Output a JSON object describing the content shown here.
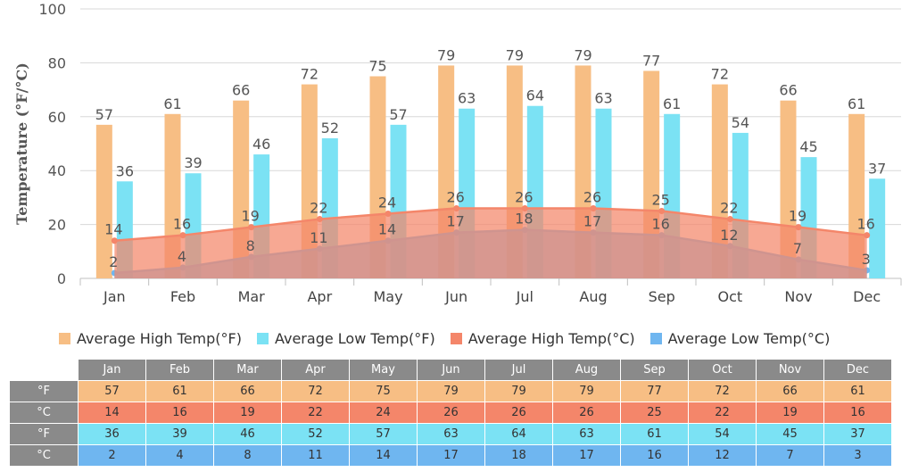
{
  "chart_data": {
    "type": "bar",
    "categories": [
      "Jan",
      "Feb",
      "Mar",
      "Apr",
      "May",
      "Jun",
      "Jul",
      "Aug",
      "Sep",
      "Oct",
      "Nov",
      "Dec"
    ],
    "ylabel": "Temperature (°F/°C)",
    "ylim": [
      0,
      100
    ],
    "yticks": [
      "0",
      "20",
      "40",
      "60",
      "80",
      "100"
    ],
    "grid": true,
    "legend_position": "bottom",
    "series": [
      {
        "name": "Average High Temp(°F)",
        "kind": "bar",
        "color": "#f7be84",
        "values": [
          57,
          61,
          66,
          72,
          75,
          79,
          79,
          79,
          77,
          72,
          66,
          61
        ]
      },
      {
        "name": "Average Low Temp(°F)",
        "kind": "bar",
        "color": "#7be2f4",
        "values": [
          36,
          39,
          46,
          52,
          57,
          63,
          64,
          63,
          61,
          54,
          45,
          37
        ]
      },
      {
        "name": "Average High Temp(°C)",
        "kind": "area",
        "color": "#f4866a",
        "values": [
          14,
          16,
          19,
          22,
          24,
          26,
          26,
          26,
          25,
          22,
          19,
          16
        ]
      },
      {
        "name": "Average Low Temp(°C)",
        "kind": "area",
        "color": "#6fb6f0",
        "values": [
          2,
          4,
          8,
          11,
          14,
          17,
          18,
          17,
          16,
          12,
          7,
          3
        ]
      }
    ]
  },
  "table": {
    "row_labels": [
      "°F",
      "°C",
      "°F",
      "°C"
    ],
    "row_colors": [
      "#f7be84",
      "#f4866a",
      "#7be2f4",
      "#6fb6f0"
    ]
  }
}
